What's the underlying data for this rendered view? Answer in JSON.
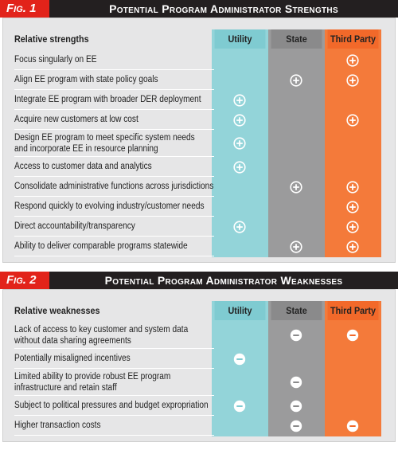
{
  "figures": [
    {
      "label": "Fig. 1",
      "title": "Potential Program Administrator Strengths",
      "symbol": "plus",
      "columns": [
        "Relative strengths",
        "Utility",
        "State",
        "Third Party"
      ],
      "rows": [
        {
          "label": [
            "Focus singularly on EE"
          ],
          "marks": [
            false,
            false,
            true
          ]
        },
        {
          "label": [
            "Align EE program with state policy goals"
          ],
          "marks": [
            false,
            true,
            true
          ]
        },
        {
          "label": [
            "Integrate EE program with broader DER deployment"
          ],
          "marks": [
            true,
            false,
            false
          ]
        },
        {
          "label": [
            "Acquire new customers at low cost"
          ],
          "marks": [
            true,
            false,
            true
          ]
        },
        {
          "label": [
            "Design EE program to meet specific system needs",
            "and incorporate EE in resource planning"
          ],
          "marks": [
            true,
            false,
            false
          ]
        },
        {
          "label": [
            "Access to customer data and analytics"
          ],
          "marks": [
            true,
            false,
            false
          ]
        },
        {
          "label": [
            "Consolidate administrative functions across jurisdictions"
          ],
          "marks": [
            false,
            true,
            true
          ]
        },
        {
          "label": [
            "Respond quickly to evolving industry/customer needs"
          ],
          "marks": [
            false,
            false,
            true
          ]
        },
        {
          "label": [
            "Direct accountability/transparency"
          ],
          "marks": [
            true,
            false,
            true
          ]
        },
        {
          "label": [
            "Ability to deliver comparable programs statewide"
          ],
          "marks": [
            false,
            true,
            true
          ]
        }
      ]
    },
    {
      "label": "Fig. 2",
      "title": "Potential Program Administrator Weaknesses",
      "symbol": "minus",
      "columns": [
        "Relative weaknesses",
        "Utility",
        "State",
        "Third Party"
      ],
      "rows": [
        {
          "label": [
            "Lack of access to key customer and system data",
            "without data sharing agreements"
          ],
          "marks": [
            false,
            true,
            true
          ]
        },
        {
          "label": [
            "Potentially misaligned incentives"
          ],
          "marks": [
            true,
            false,
            false
          ]
        },
        {
          "label": [
            "Limited ability to provide robust EE program",
            "infrastructure and retain staff"
          ],
          "marks": [
            false,
            true,
            false
          ]
        },
        {
          "label": [
            "Subject to political pressures and budget expropriation"
          ],
          "marks": [
            true,
            true,
            false
          ]
        },
        {
          "label": [
            "Higher transaction costs"
          ],
          "marks": [
            false,
            true,
            true
          ]
        }
      ]
    }
  ]
}
